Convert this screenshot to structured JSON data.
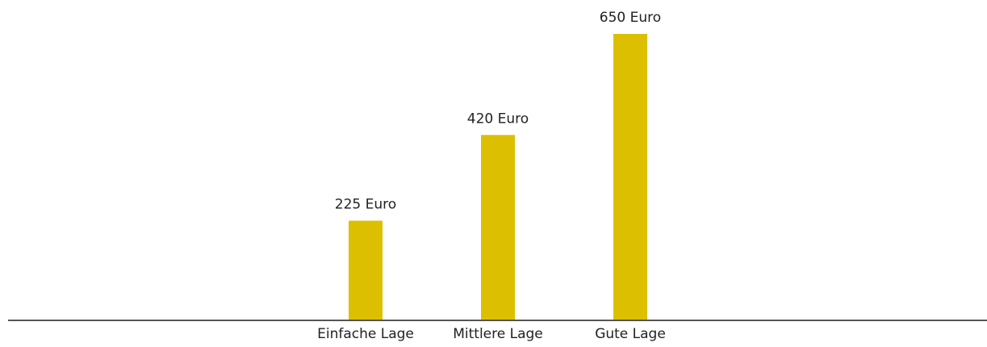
{
  "chart_data": {
    "type": "bar",
    "categories": [
      "Einfache Lage",
      "Mittlere Lage",
      "Gute Lage"
    ],
    "values": [
      225,
      420,
      650
    ],
    "value_labels": [
      "225 Euro",
      "420 Euro",
      "650 Euro"
    ],
    "color": "#dcc000"
  }
}
